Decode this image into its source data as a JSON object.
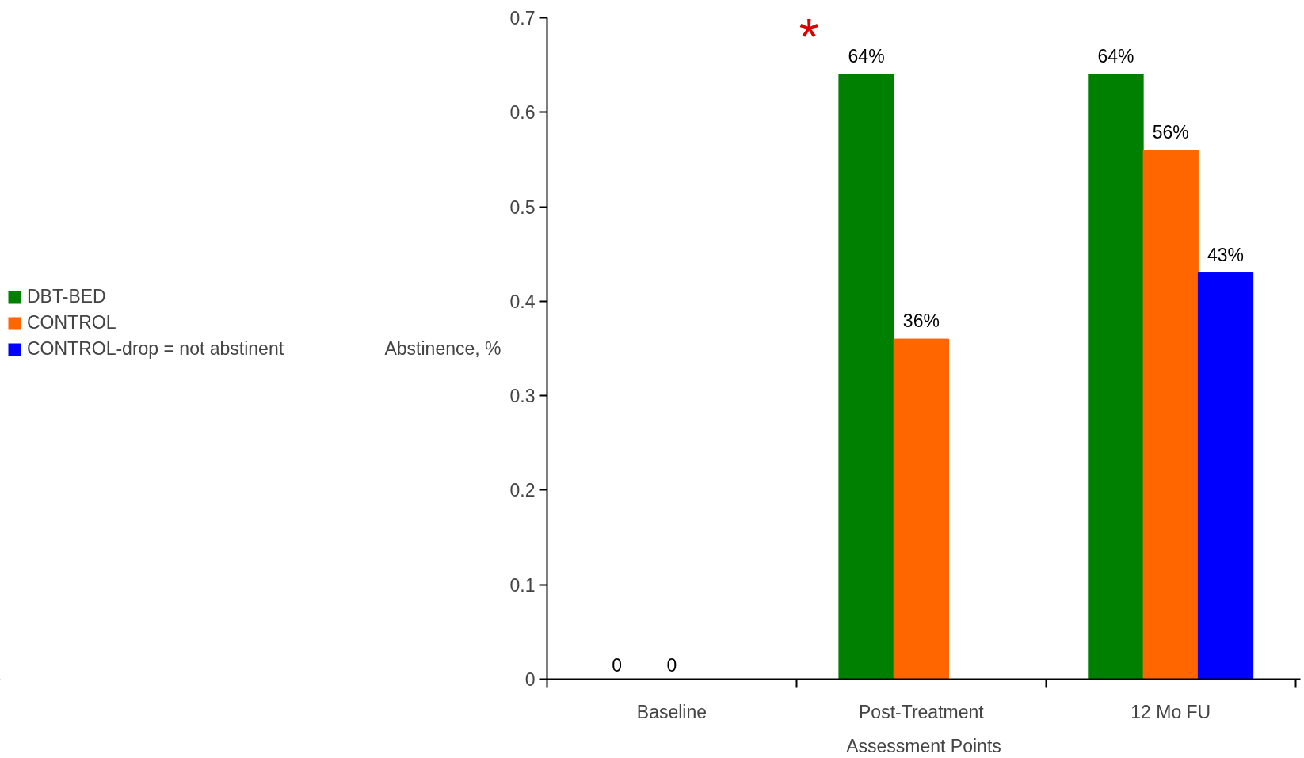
{
  "chart_data": {
    "type": "bar",
    "xlabel": "Assessment Points",
    "ylabel": "Abstinence, %",
    "categories": [
      "Baseline",
      "Post-Treatment",
      "12 Mo FU"
    ],
    "series": [
      {
        "name": "DBT-BED",
        "color": "#008000",
        "values": [
          0,
          0.64,
          0.64
        ],
        "value_labels": [
          "0",
          "64%",
          "64%"
        ]
      },
      {
        "name": "CONTROL",
        "color": "#ff6600",
        "values": [
          0,
          0.36,
          0.56
        ],
        "value_labels": [
          "0",
          "36%",
          "56%"
        ]
      },
      {
        "name": "CONTROL-drop = not abstinent",
        "color": "#0000ff",
        "values": [
          null,
          null,
          0.43
        ],
        "value_labels": [
          null,
          null,
          "43%"
        ]
      }
    ],
    "ylim": [
      0,
      0.7
    ],
    "yticks": [
      0,
      0.1,
      0.2,
      0.3,
      0.4,
      0.5,
      0.6,
      0.7
    ],
    "legend": "left",
    "annotations": [
      "*"
    ]
  }
}
